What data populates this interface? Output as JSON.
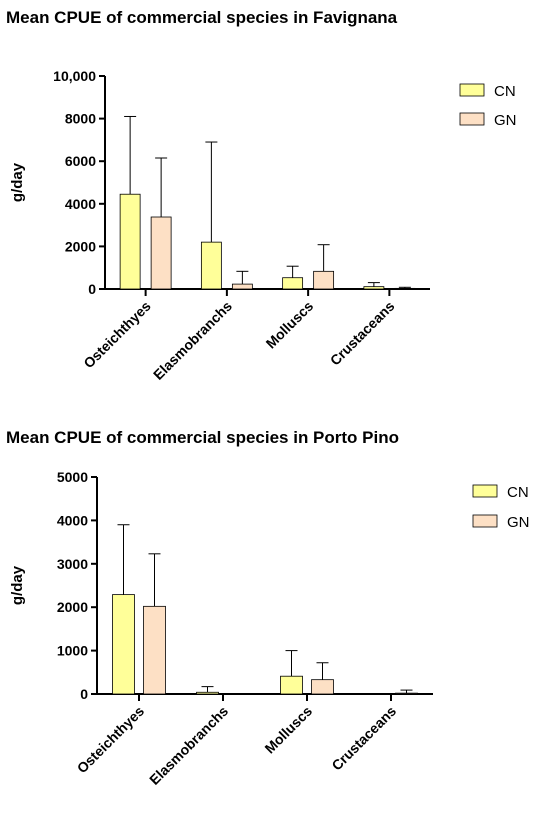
{
  "chart_data": [
    {
      "type": "bar",
      "title": "Mean CPUE of commercial species in Favignana",
      "ylabel": "g/day",
      "xlabel": "",
      "categories": [
        "Osteichthyes",
        "Elasmobranchs",
        "Molluscs",
        "Crustaceans"
      ],
      "ylim": [
        0,
        10000
      ],
      "yticks": [
        0,
        2000,
        4000,
        6000,
        8000,
        10000
      ],
      "ytick_labels": [
        "0",
        "2000",
        "4000",
        "6000",
        "8000",
        "10,000"
      ],
      "series": [
        {
          "name": "CN",
          "color": "#ffff99",
          "values": [
            4450,
            2200,
            530,
            110
          ],
          "error_upper": [
            8100,
            6900,
            1070,
            300
          ]
        },
        {
          "name": "GN",
          "color": "#fde0c5",
          "values": [
            3380,
            230,
            830,
            30
          ],
          "error_upper": [
            6150,
            830,
            2080,
            80
          ]
        }
      ],
      "legend": "top-right",
      "error_bars": "upper"
    },
    {
      "type": "bar",
      "title": "Mean CPUE  of commercial species in Porto Pino",
      "ylabel": "g/day",
      "xlabel": "",
      "categories": [
        "Osteichthyes",
        "Elasmobranchs",
        "Molluscs",
        "Crustaceans"
      ],
      "ylim": [
        0,
        5000
      ],
      "yticks": [
        0,
        1000,
        2000,
        3000,
        4000,
        5000
      ],
      "ytick_labels": [
        "0",
        "1000",
        "2000",
        "3000",
        "4000",
        "5000"
      ],
      "series": [
        {
          "name": "CN",
          "color": "#ffff99",
          "values": [
            2290,
            40,
            410,
            0
          ],
          "error_upper": [
            3900,
            170,
            1000,
            0
          ]
        },
        {
          "name": "GN",
          "color": "#fde0c5",
          "values": [
            2020,
            0,
            330,
            20
          ],
          "error_upper": [
            3230,
            0,
            720,
            90
          ]
        }
      ],
      "legend": "top-right",
      "error_bars": "upper"
    }
  ]
}
